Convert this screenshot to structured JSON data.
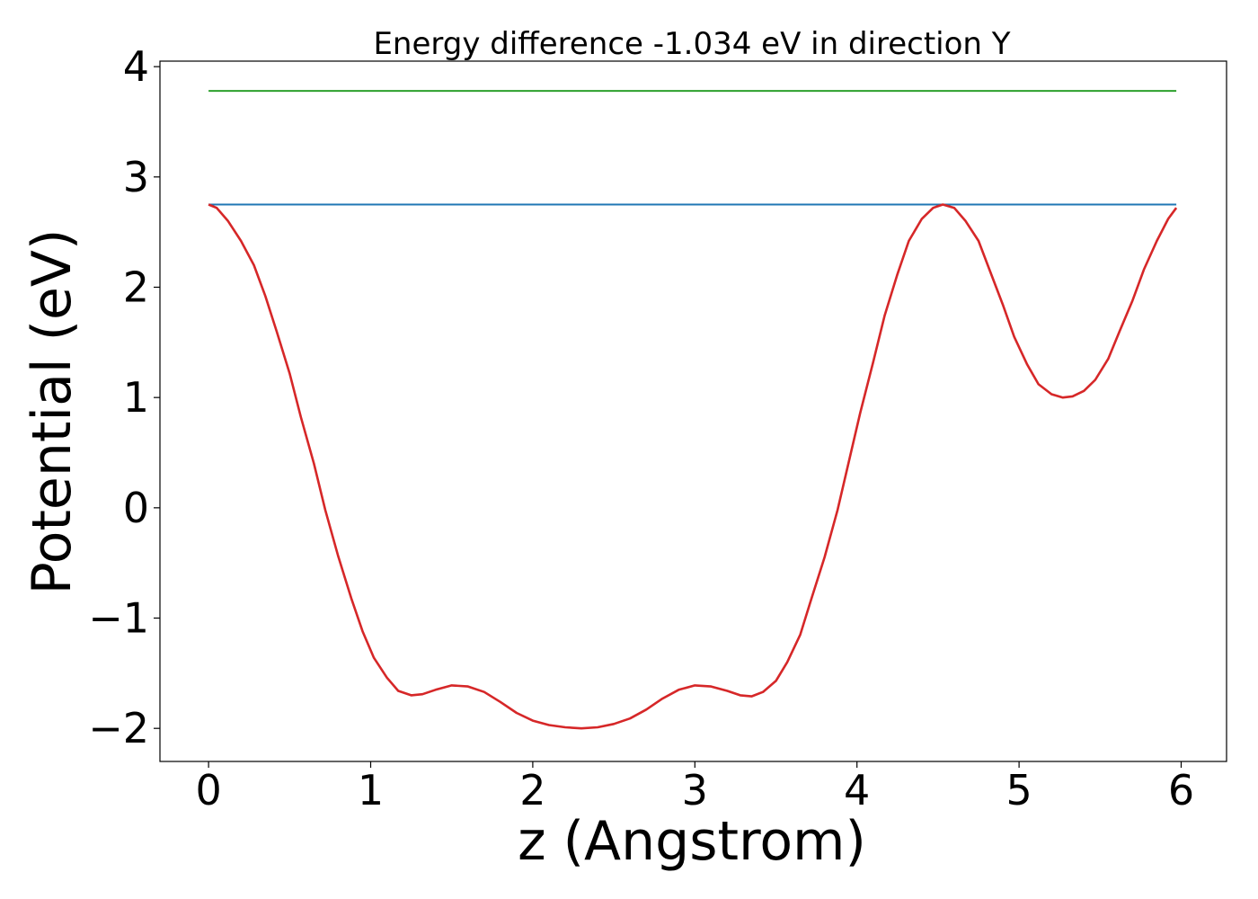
{
  "chart_data": {
    "type": "line",
    "title": "Energy difference -1.034 eV in direction Y",
    "xlabel": "z (Angstrom)",
    "ylabel": "Potential (eV)",
    "xlim": [
      -0.3,
      6.28
    ],
    "ylim": [
      -2.3,
      4.05
    ],
    "xticks": [
      0,
      1,
      2,
      3,
      4,
      5,
      6
    ],
    "xtick_labels": [
      "0",
      "1",
      "2",
      "3",
      "4",
      "5",
      "6"
    ],
    "yticks": [
      -2,
      -1,
      0,
      1,
      2,
      3,
      4
    ],
    "ytick_labels": [
      "−2",
      "−1",
      "0",
      "1",
      "2",
      "3",
      "4"
    ],
    "grid": false,
    "series": [
      {
        "color": "#2ca02c",
        "x": [
          0,
          5.97
        ],
        "y": [
          3.78,
          3.78
        ]
      },
      {
        "color": "#1f77b4",
        "x": [
          0,
          5.97
        ],
        "y": [
          2.75,
          2.75
        ]
      },
      {
        "color": "#d62728",
        "x": [
          0,
          0.05,
          0.12,
          0.2,
          0.28,
          0.35,
          0.42,
          0.5,
          0.57,
          0.65,
          0.72,
          0.8,
          0.88,
          0.95,
          1.02,
          1.1,
          1.17,
          1.25,
          1.32,
          1.4,
          1.5,
          1.6,
          1.7,
          1.8,
          1.9,
          2.0,
          2.1,
          2.2,
          2.3,
          2.4,
          2.5,
          2.6,
          2.7,
          2.8,
          2.9,
          3.0,
          3.1,
          3.2,
          3.28,
          3.35,
          3.42,
          3.5,
          3.57,
          3.65,
          3.72,
          3.8,
          3.88,
          3.95,
          4.02,
          4.1,
          4.17,
          4.25,
          4.32,
          4.4,
          4.47,
          4.53,
          4.6,
          4.67,
          4.75,
          4.82,
          4.9,
          4.97,
          5.05,
          5.12,
          5.2,
          5.27,
          5.33,
          5.4,
          5.47,
          5.55,
          5.62,
          5.7,
          5.77,
          5.85,
          5.92,
          5.97
        ],
        "y": [
          2.75,
          2.72,
          2.6,
          2.42,
          2.2,
          1.92,
          1.6,
          1.22,
          0.82,
          0.4,
          -0.02,
          -0.44,
          -0.82,
          -1.12,
          -1.36,
          -1.54,
          -1.66,
          -1.7,
          -1.69,
          -1.65,
          -1.61,
          -1.62,
          -1.67,
          -1.76,
          -1.86,
          -1.93,
          -1.97,
          -1.99,
          -2.0,
          -1.99,
          -1.96,
          -1.91,
          -1.83,
          -1.73,
          -1.65,
          -1.61,
          -1.62,
          -1.66,
          -1.7,
          -1.71,
          -1.67,
          -1.57,
          -1.4,
          -1.15,
          -0.82,
          -0.45,
          -0.02,
          0.42,
          0.86,
          1.32,
          1.74,
          2.12,
          2.42,
          2.62,
          2.72,
          2.75,
          2.72,
          2.6,
          2.42,
          2.15,
          1.84,
          1.55,
          1.3,
          1.12,
          1.03,
          1.0,
          1.01,
          1.06,
          1.16,
          1.35,
          1.6,
          1.88,
          2.16,
          2.42,
          2.62,
          2.72
        ]
      }
    ]
  }
}
